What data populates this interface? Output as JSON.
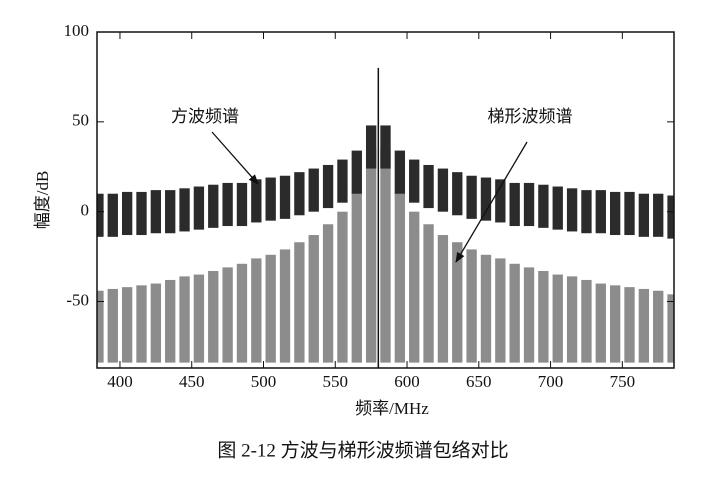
{
  "chart_data": {
    "type": "spectrum",
    "x_label": "频率/MHz",
    "y_label": "幅度/dB",
    "caption": "图 2-12  方波与梯形波频谱包络对比",
    "xlim": [
      384,
      786
    ],
    "ylim": [
      -87,
      100
    ],
    "xticks": [
      400,
      450,
      500,
      550,
      600,
      650,
      700,
      750
    ],
    "yticks": [
      -50,
      0,
      50,
      100
    ],
    "x": [
      385,
      395,
      405,
      415,
      425,
      435,
      445,
      455,
      465,
      475,
      485,
      495,
      505,
      515,
      525,
      535,
      545,
      555,
      565,
      575,
      585,
      595,
      605,
      615,
      625,
      635,
      645,
      655,
      665,
      675,
      685,
      695,
      705,
      715,
      725,
      735,
      745,
      755,
      765,
      775,
      785
    ],
    "series": [
      {
        "name": "方波频谱",
        "color": "#2b2b2b",
        "values": [
          10,
          10,
          11,
          11,
          12,
          12,
          13,
          14,
          15,
          16,
          16,
          18,
          19,
          20,
          22,
          24,
          26,
          29,
          34,
          48,
          48,
          34,
          29,
          26,
          24,
          22,
          20,
          19,
          18,
          16,
          16,
          15,
          14,
          13,
          12,
          12,
          11,
          11,
          10,
          10,
          9
        ],
        "lower": [
          -14,
          -14,
          -13,
          -13,
          -12,
          -12,
          -11,
          -10,
          -9,
          -8,
          -8,
          -6,
          -5,
          -4,
          -2,
          0,
          2,
          5,
          10,
          24,
          24,
          10,
          5,
          2,
          0,
          -2,
          -4,
          -5,
          -6,
          -8,
          -8,
          -9,
          -10,
          -11,
          -12,
          -12,
          -13,
          -13,
          -14,
          -14,
          -15
        ]
      },
      {
        "name": "梯形波频谱",
        "color": "#8c8c8c",
        "values": [
          -44,
          -43,
          -42,
          -41,
          -40,
          -38,
          -36,
          -35,
          -33,
          -31,
          -29,
          -26,
          -24,
          -21,
          -17,
          -13,
          -7,
          0,
          11,
          35,
          35,
          11,
          0,
          -7,
          -13,
          -17,
          -21,
          -24,
          -26,
          -29,
          -31,
          -33,
          -35,
          -36,
          -38,
          -40,
          -41,
          -42,
          -43,
          -44,
          -46
        ],
        "lower": [
          -84,
          -84,
          -84,
          -84,
          -84,
          -84,
          -84,
          -84,
          -84,
          -84,
          -84,
          -84,
          -84,
          -84,
          -84,
          -84,
          -84,
          -84,
          -84,
          -84,
          -84,
          -84,
          -84,
          -84,
          -84,
          -84,
          -84,
          -84,
          -84,
          -84,
          -84,
          -84,
          -84,
          -84,
          -84,
          -84,
          -84,
          -84,
          -84,
          -84,
          -84
        ]
      }
    ],
    "peak": {
      "x": 580,
      "value": 80
    }
  }
}
